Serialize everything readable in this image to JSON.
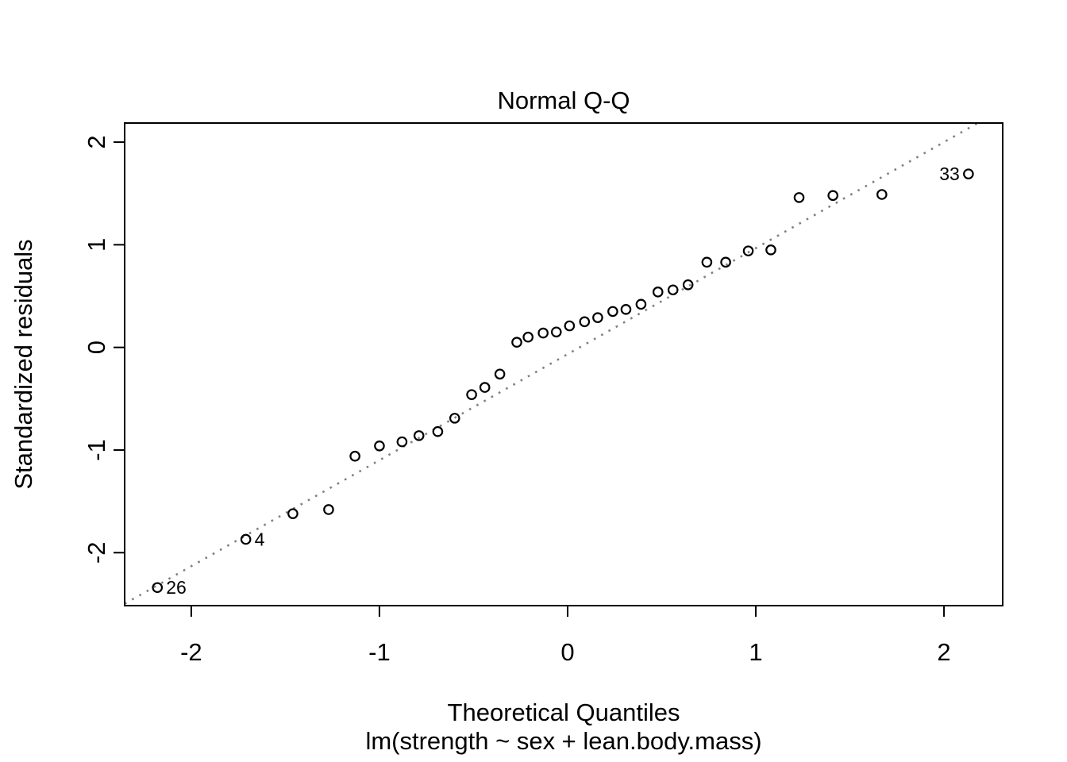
{
  "figure": {
    "background": "#ffffff"
  },
  "colors": {
    "points": "#000000",
    "reference_line": "#808080",
    "text": "#000000",
    "axis_box": "#000000"
  },
  "chart_data": {
    "type": "scatter",
    "title": "Normal Q-Q",
    "xlabel": "Theoretical Quantiles",
    "ylabel": "Standardized residuals",
    "subtitle": "lm(strength ~ sex + lean.body.mass)",
    "grid": false,
    "legend": "none",
    "xlim": [
      -2.354,
      2.312
    ],
    "ylim": [
      -2.516,
      2.186
    ],
    "x_ticks": [
      -2,
      -1,
      0,
      1,
      2
    ],
    "y_ticks": [
      -2,
      -1,
      0,
      1,
      2
    ],
    "marker": "open-circle",
    "reference_line": {
      "style": "dotted",
      "slope": 1.033,
      "intercept": -0.066,
      "color": "#808080"
    },
    "points": [
      {
        "x": -2.18,
        "y": -2.34,
        "label": "26",
        "label_side": "right"
      },
      {
        "x": -1.71,
        "y": -1.87,
        "label": "4",
        "label_side": "right"
      },
      {
        "x": -1.46,
        "y": -1.62
      },
      {
        "x": -1.27,
        "y": -1.58
      },
      {
        "x": -1.13,
        "y": -1.06
      },
      {
        "x": -1.0,
        "y": -0.96
      },
      {
        "x": -0.88,
        "y": -0.92
      },
      {
        "x": -0.79,
        "y": -0.86
      },
      {
        "x": -0.69,
        "y": -0.82
      },
      {
        "x": -0.6,
        "y": -0.69
      },
      {
        "x": -0.51,
        "y": -0.46
      },
      {
        "x": -0.44,
        "y": -0.39
      },
      {
        "x": -0.36,
        "y": -0.26
      },
      {
        "x": -0.27,
        "y": 0.05
      },
      {
        "x": -0.21,
        "y": 0.1
      },
      {
        "x": -0.13,
        "y": 0.14
      },
      {
        "x": -0.06,
        "y": 0.15
      },
      {
        "x": 0.01,
        "y": 0.21
      },
      {
        "x": 0.09,
        "y": 0.25
      },
      {
        "x": 0.16,
        "y": 0.29
      },
      {
        "x": 0.24,
        "y": 0.35
      },
      {
        "x": 0.31,
        "y": 0.37
      },
      {
        "x": 0.39,
        "y": 0.42
      },
      {
        "x": 0.48,
        "y": 0.54
      },
      {
        "x": 0.56,
        "y": 0.56
      },
      {
        "x": 0.64,
        "y": 0.61
      },
      {
        "x": 0.74,
        "y": 0.83
      },
      {
        "x": 0.84,
        "y": 0.83
      },
      {
        "x": 0.96,
        "y": 0.94
      },
      {
        "x": 1.08,
        "y": 0.95
      },
      {
        "x": 1.23,
        "y": 1.46
      },
      {
        "x": 1.41,
        "y": 1.48
      },
      {
        "x": 1.67,
        "y": 1.49
      },
      {
        "x": 2.13,
        "y": 1.69,
        "label": "33",
        "label_side": "left"
      }
    ]
  }
}
